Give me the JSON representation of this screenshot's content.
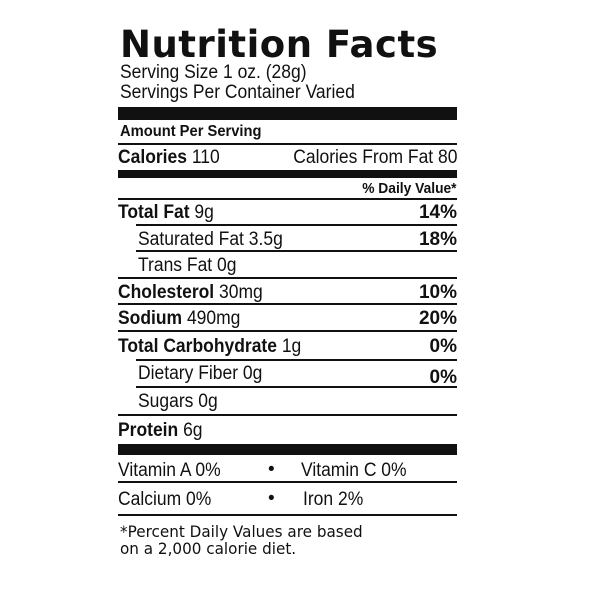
{
  "title": "Nutrition Facts",
  "serving_size": "Serving Size 1 oz. (28g)",
  "servings_per_container": "Servings Per Container Varied",
  "amount_per_serving": "Amount Per Serving",
  "calories": {
    "label": "Calories",
    "value": "110",
    "from_fat": "Calories From Fat 80"
  },
  "daily_value_header": "% Daily Value*",
  "nutrients": [
    {
      "label": "Total Fat",
      "amount": "9g",
      "dv": "14%"
    },
    {
      "label": "Saturated Fat",
      "amount": "3.5g",
      "dv": "18%"
    },
    {
      "label": "Trans Fat",
      "amount": "0g",
      "dv": ""
    },
    {
      "label": "Cholesterol",
      "amount": "30mg",
      "dv": "10%"
    },
    {
      "label": "Sodium",
      "amount": "490mg",
      "dv": "20%"
    },
    {
      "label": "Total Carbohydrate",
      "amount": "1g",
      "dv": "0%"
    },
    {
      "label": "Dietary Fiber",
      "amount": "0g",
      "dv": "0%"
    },
    {
      "label": "Sugars",
      "amount": "0g",
      "dv": ""
    },
    {
      "label": "Protein",
      "amount": "6g",
      "dv": ""
    }
  ],
  "vitamins": {
    "vitamin_a": "Vitamin A 0%",
    "vitamin_c": "Vitamin C 0%",
    "calcium": "Calcium 0%",
    "iron": "Iron 2%",
    "separator": "•"
  },
  "footnote": [
    "*Percent Daily Values are based",
    "on a 2,000 calorie diet."
  ]
}
